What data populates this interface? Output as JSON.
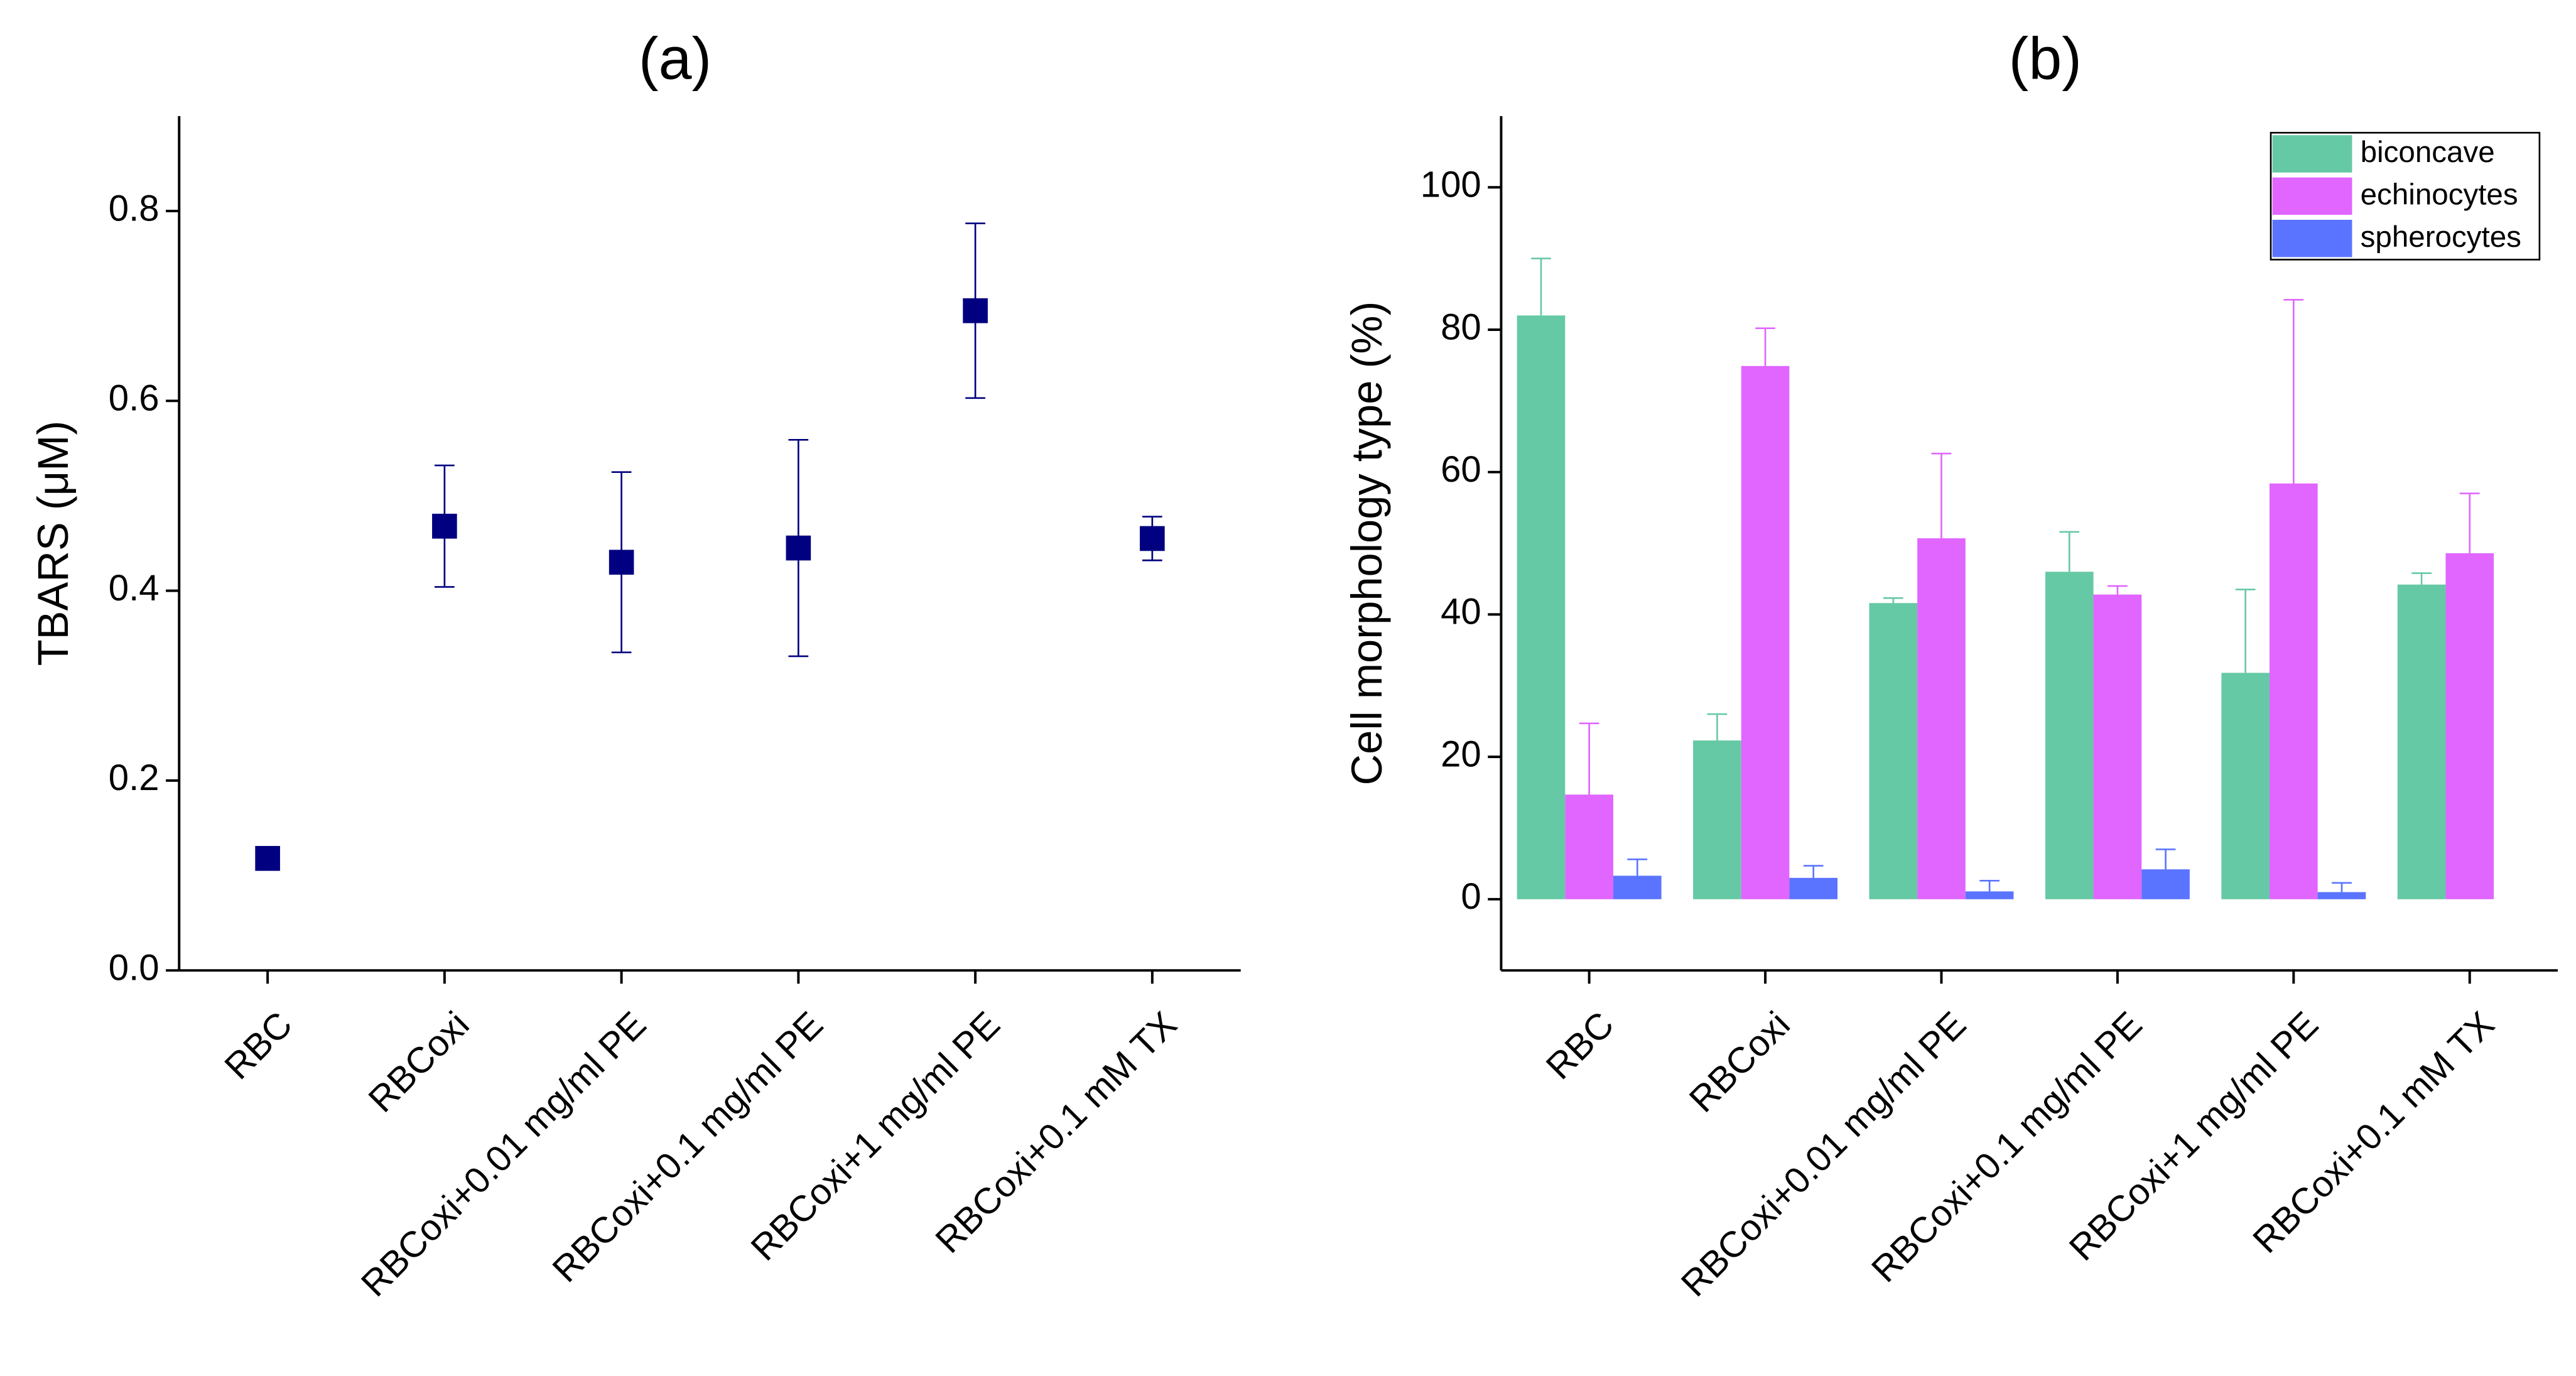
{
  "chart_data": [
    {
      "type": "scatter",
      "title": "(a)",
      "y_label": "TBARS (μM)",
      "categories": [
        "RBC",
        "RBCoxi",
        "RBCoxi+0.01 mg/ml PE",
        "RBCoxi+0.1 mg/ml PE",
        "RBCoxi+1 mg/ml PE",
        "RBCoxi+0.1 mM TX"
      ],
      "values": [
        0.118,
        0.468,
        0.43,
        0.445,
        0.695,
        0.455
      ],
      "errors": [
        null,
        0.064,
        0.095,
        0.114,
        0.092,
        0.023
      ],
      "color": "#000080",
      "ylim": [
        0,
        0.9
      ],
      "yticks": [
        {
          "value": 0,
          "label": "0.0"
        },
        0.2,
        0.4,
        0.6,
        0.8
      ]
    },
    {
      "type": "bar",
      "title": "(b)",
      "y_label": "Cell morphology type (%)",
      "categories": [
        "RBC",
        "RBCoxi",
        "RBCoxi+0.01 mg/ml PE",
        "RBCoxi+0.1 mg/ml PE",
        "RBCoxi+1 mg/ml PE",
        "RBCoxi+0.1 mM TX"
      ],
      "series": [
        {
          "name": "biconcave",
          "color": "#66c9a5",
          "values": [
            82,
            22.3,
            41.6,
            46,
            31.8,
            44.2
          ],
          "errors": [
            8,
            3.7,
            0.7,
            5.6,
            11.7,
            1.6
          ]
        },
        {
          "name": "echinocytes",
          "color": "#e066ff",
          "values": [
            14.7,
            74.9,
            50.7,
            42.8,
            58.4,
            48.6
          ],
          "errors": [
            10,
            5.3,
            11.9,
            1.2,
            25.8,
            8.4
          ]
        },
        {
          "name": "spherocytes",
          "color": "#5b74ff",
          "values": [
            3.3,
            3,
            1.1,
            4.2,
            1,
            0
          ],
          "errors": [
            2.3,
            1.7,
            1.5,
            2.8,
            1.3,
            null
          ]
        }
      ],
      "ylim": [
        -10,
        110
      ],
      "yticks": [
        0,
        20,
        40,
        60,
        80,
        100
      ],
      "legend": "upper right"
    }
  ]
}
